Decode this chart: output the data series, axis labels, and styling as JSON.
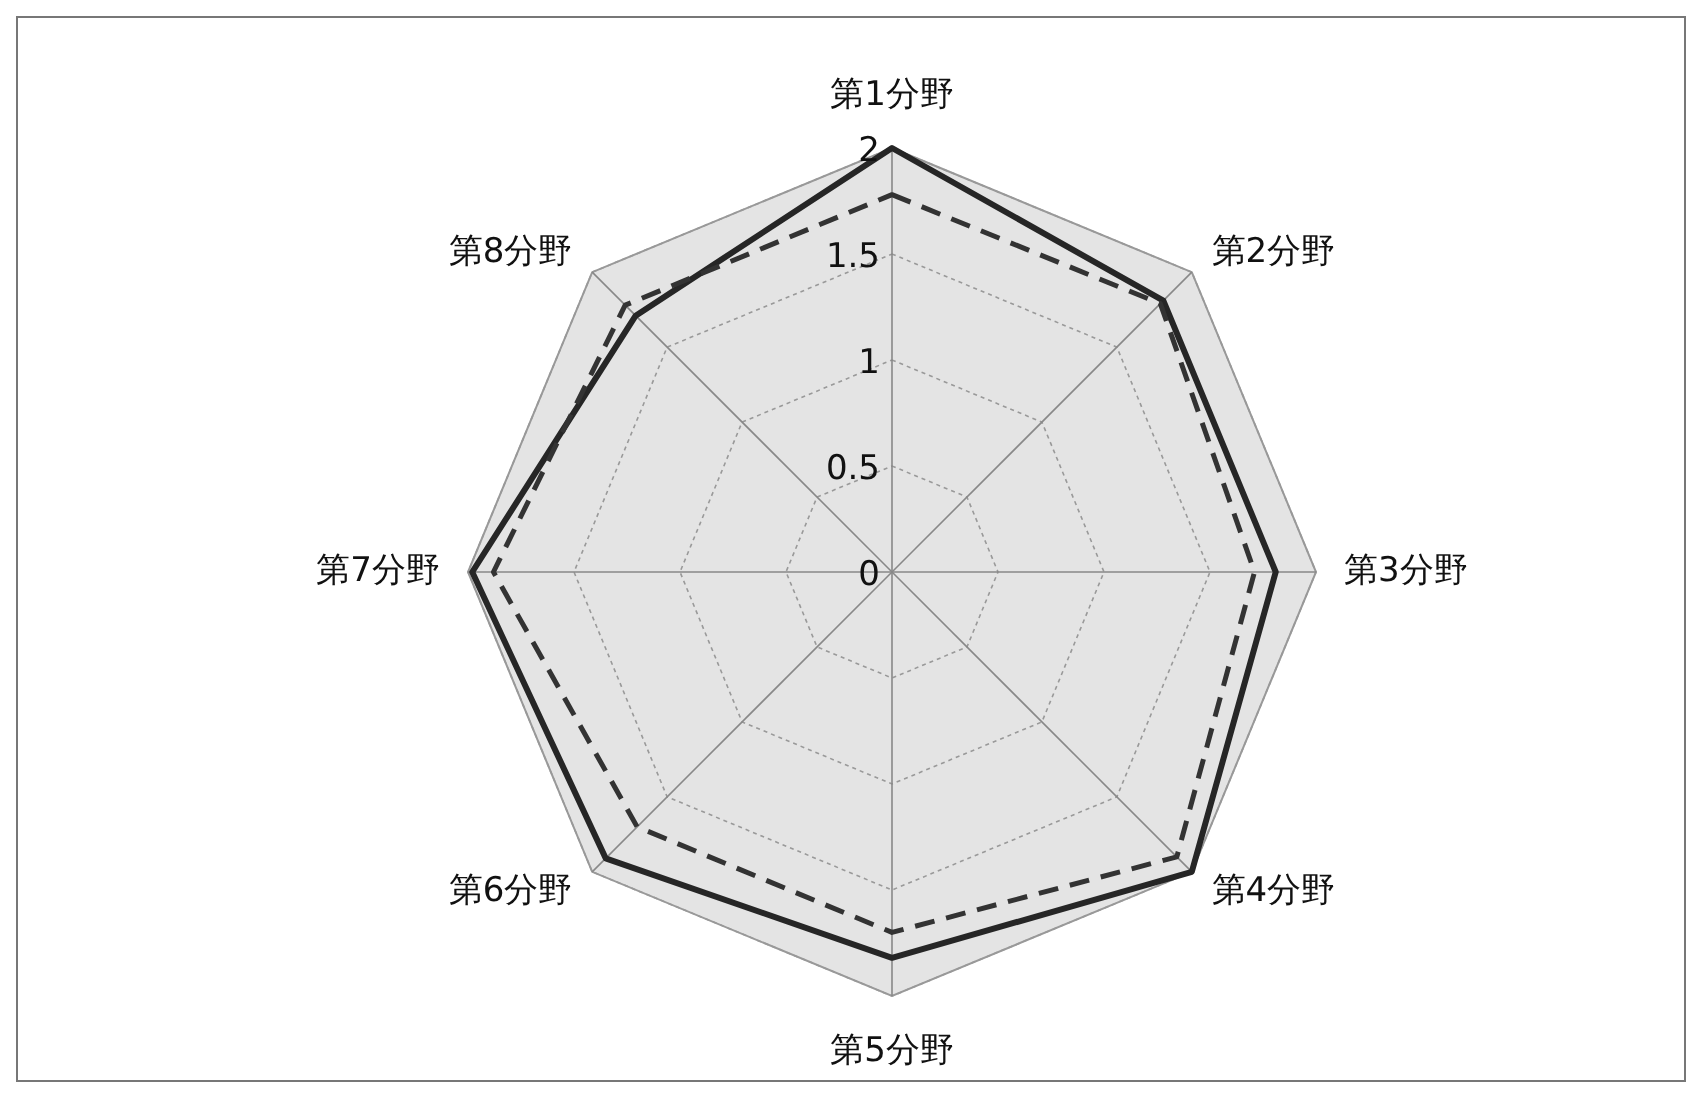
{
  "chart_data": {
    "type": "radar",
    "categories": [
      "第1分野",
      "第2分野",
      "第3分野",
      "第4分野",
      "第5分野",
      "第6分野",
      "第7分野",
      "第8分野"
    ],
    "ylim": [
      0,
      2
    ],
    "yticks": [
      0,
      0.5,
      1,
      1.5,
      2
    ],
    "grid": true,
    "marker": "none",
    "series": [
      {
        "color": "#262626",
        "line_style": "solid",
        "values": [
          2.0,
          1.81,
          1.81,
          2.0,
          1.82,
          1.91,
          1.98,
          1.71
        ]
      },
      {
        "color": "#333333",
        "line_style": "dashed",
        "values": [
          1.78,
          1.79,
          1.71,
          1.9,
          1.7,
          1.7,
          1.88,
          1.78
        ]
      }
    ]
  }
}
